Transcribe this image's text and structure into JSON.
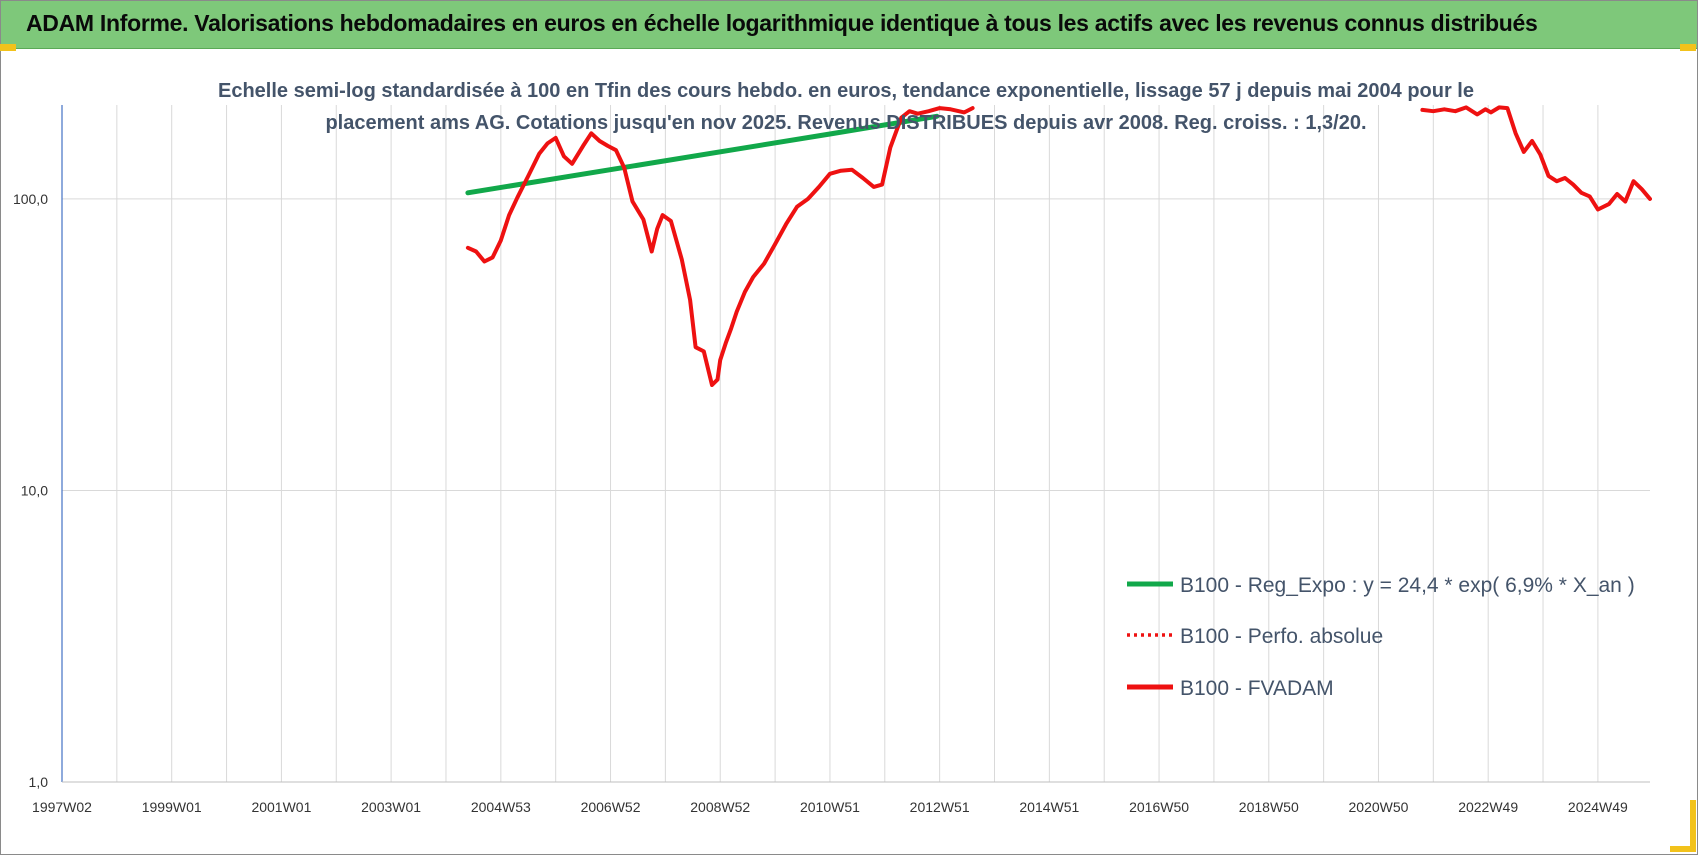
{
  "banner": {
    "title": "ADAM Informe. Valorisations hebdomadaires en euros en échelle logarithmique identique à tous les actifs avec les revenus connus distribués"
  },
  "colors": {
    "banner": "#7ec87a",
    "regression": "#11a84a",
    "series": "#ee1111",
    "gridline": "#d9d9d9",
    "text": "#44546a"
  },
  "chart_data": {
    "type": "line",
    "subtitle_lines": [
      "Echelle semi-log standardisée à 100 en Tfin des cours hebdo. en euros, tendance exponentielle, lissage 57 j depuis mai 2004 pour le",
      "placement ams AG. Cotations jusqu'en nov 2025. Revenus DISTRIBUES depuis avr 2008. Reg. croiss. : 1,3/20."
    ],
    "y_scale": "log",
    "ylim": [
      1,
      210
    ],
    "y_ticks": [
      "1,0",
      "10,0",
      "100,0"
    ],
    "y_tick_values": [
      1,
      10,
      100
    ],
    "xlim": [
      1997.0,
      2025.95
    ],
    "x_ticks": [
      "1997W02",
      "1999W01",
      "2001W01",
      "2003W01",
      "2004W53",
      "2006W52",
      "2008W52",
      "2010W51",
      "2012W51",
      "2014W51",
      "2016W50",
      "2018W50",
      "2020W50",
      "2022W49",
      "2024W49"
    ],
    "x_tick_values": [
      1997.0,
      1999.0,
      2001.0,
      2003.0,
      2005.0,
      2007.0,
      2009.0,
      2011.0,
      2013.0,
      2015.0,
      2017.0,
      2019.0,
      2021.0,
      2023.0,
      2025.0
    ],
    "grid": true,
    "legend_position": "lower-right",
    "series": [
      {
        "name": "B100 - Reg_Expo : y = 24,4 * exp( 6,9% *  X_an )",
        "style": "solid-green",
        "x": [
          2004.4,
          2011.0,
          2012.95
        ],
        "y": [
          105,
          167,
          192
        ]
      },
      {
        "name": "B100 - Perfo. absolue",
        "style": "dotted-red",
        "x": [],
        "y": []
      },
      {
        "name": "B100 - FVADAM",
        "style": "solid-red",
        "x": [
          2004.4,
          2004.55,
          2004.7,
          2004.85,
          2005.0,
          2005.15,
          2005.3,
          2005.5,
          2005.7,
          2005.85,
          2006.0,
          2006.15,
          2006.3,
          2006.5,
          2006.65,
          2006.8,
          2006.95,
          2007.1,
          2007.25,
          2007.4,
          2007.6,
          2007.75,
          2007.85,
          2007.95,
          2008.1,
          2008.3,
          2008.45,
          2008.55,
          2008.7,
          2008.85,
          2008.95,
          2009.0,
          2009.1,
          2009.2,
          2009.3,
          2009.45,
          2009.6,
          2009.8,
          2010.0,
          2010.2,
          2010.4,
          2010.6,
          2010.8,
          2011.0,
          2011.2,
          2011.4,
          2011.6,
          2011.8,
          2011.95,
          2012.1,
          2012.3,
          2012.45,
          2012.6,
          2012.8,
          2013.0,
          2013.2,
          2013.45,
          2013.6
        ],
        "y": [
          68,
          66,
          61,
          63,
          72,
          88,
          101,
          120,
          143,
          155,
          162,
          140,
          132,
          152,
          168,
          158,
          152,
          147,
          128,
          98,
          85,
          66,
          79,
          88,
          84,
          62,
          45,
          31,
          30,
          23,
          24,
          28,
          32,
          36,
          41,
          48,
          54,
          60,
          70,
          82,
          94,
          100,
          110,
          122,
          125,
          126,
          118,
          110,
          112,
          150,
          190,
          200,
          196,
          200,
          205,
          203,
          198,
          205
        ]
      },
      {
        "name": "B100 - FVADAM",
        "style": "solid-red",
        "x": [
          2021.8,
          2022.0,
          2022.2,
          2022.4,
          2022.6,
          2022.8,
          2022.95,
          2023.05,
          2023.2,
          2023.35,
          2023.5,
          2023.65,
          2023.8,
          2023.95,
          2024.1,
          2024.25,
          2024.4,
          2024.55,
          2024.7,
          2024.85,
          2025.0,
          2025.2,
          2025.35,
          2025.5,
          2025.65,
          2025.8,
          2025.95
        ],
        "y": [
          202,
          200,
          203,
          200,
          206,
          195,
          203,
          198,
          206,
          205,
          168,
          145,
          158,
          142,
          120,
          115,
          118,
          112,
          105,
          102,
          92,
          96,
          104,
          98,
          115,
          108,
          100
        ]
      }
    ]
  }
}
